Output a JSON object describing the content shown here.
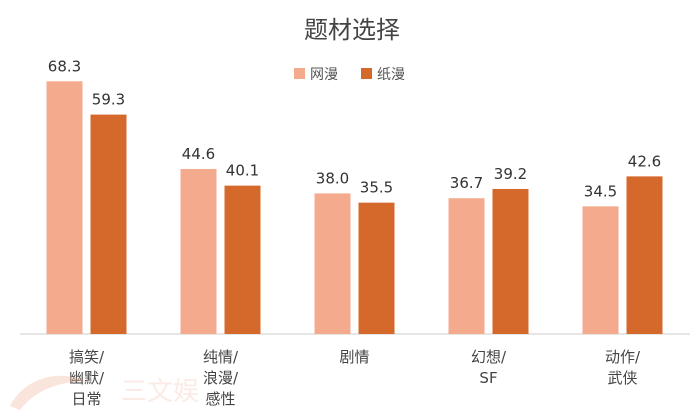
{
  "chart_data": {
    "type": "bar",
    "title": "题材选择",
    "categories": [
      [
        "搞笑/",
        "幽默/",
        "日常"
      ],
      [
        "纯情/",
        "浪漫/",
        "感性"
      ],
      [
        "剧情"
      ],
      [
        "幻想/",
        "SF"
      ],
      [
        "动作/",
        "武侠"
      ]
    ],
    "series": [
      {
        "name": "网漫",
        "color": "#f4aa8c",
        "values": [
          68.3,
          44.6,
          38.0,
          36.7,
          34.5
        ]
      },
      {
        "name": "纸漫",
        "color": "#d5692b",
        "values": [
          59.3,
          40.1,
          35.5,
          39.2,
          42.6
        ]
      }
    ],
    "ylim": [
      0,
      80
    ],
    "legend": "top-center",
    "grid": false,
    "xlabel": "",
    "ylabel": ""
  },
  "watermark": {
    "text": "三文娱",
    "color": "#f6c7b4"
  }
}
